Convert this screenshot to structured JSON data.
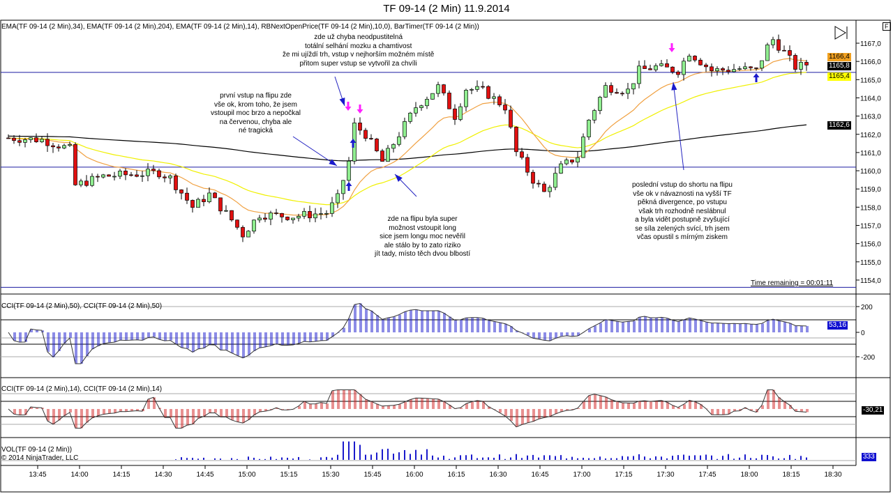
{
  "title": "TF 09-14 (2 Min)  11.9.2014",
  "price_panel_label": "EMA(TF 09-14 (2 Min),34), EMA(TF 09-14 (2 Min),204), EMA(TF 09-14 (2 Min),14), RBNextOpenPrice(TF 09-14 (2 Min),10,0), BarTimer(TF 09-14 (2 Min))",
  "cci50_label": "CCI(TF 09-14 (2 Min),50), CCI(TF 09-14 (2 Min),50)",
  "cci14_label": "CCI(TF 09-14 (2 Min),14), CCI(TF 09-14 (2 Min),14)",
  "vol_label": "VOL(TF 09-14 (2 Min))",
  "copyright": "© 2014 NinjaTrader, LLC",
  "time_remaining": "Time remaining = 00:01:11",
  "f_button": "F",
  "tags": {
    "ema_orange": "1166,4",
    "last": "1165,8",
    "ema_yellow": "1165,4",
    "ema_black": "1162,6",
    "cci50": "53,16",
    "cci14": "-30,21",
    "vol": "333"
  },
  "annotations": {
    "a1": [
      "zde už chyba neodpustitelná",
      "totální selhání mozku a chamtivost",
      "že mi ujíždí trh, vstup v nejhorším možném místě",
      "přitom super vstup se vytvořil za chvíli"
    ],
    "a2": [
      "první vstup na flipu zde",
      "vše ok, krom toho, že jsem",
      "vstoupil moc brzo a nepočkal",
      "na červenou, chyba ale",
      "né tragická"
    ],
    "a3": [
      "zde na flipu byla super",
      "možnost vstoupit long",
      "sice jsem longu moc nevěřil",
      "ale stálo by to zato riziko",
      "jít tady, místo těch dvou blbostí"
    ],
    "a4": [
      "poslední vstup do shortu na flipu",
      "vše ok v návaznosti na vyšší TF",
      "pěkná divergence, po vstupu",
      "však trh rozhodně neslábnul",
      "a byla vidět postupně zvyšující",
      "se síla zelených svící, trh jsem",
      "včas opustil s mírným ziskem"
    ]
  },
  "chart_data": {
    "type": "candlestick",
    "title": "TF 09-14 (2 Min)  11.9.2014",
    "x_ticks": [
      "13:45",
      "14:00",
      "14:15",
      "14:30",
      "14:45",
      "15:00",
      "15:15",
      "15:30",
      "15:45",
      "16:00",
      "16:15",
      "16:30",
      "16:45",
      "17:00",
      "17:15",
      "17:30",
      "17:45",
      "18:00",
      "18:15",
      "18:30"
    ],
    "y_ticks": [
      "1167,0",
      "1166,0",
      "1165,0",
      "1164,0",
      "1163,0",
      "1162,0",
      "1161,0",
      "1160,0",
      "1159,0",
      "1158,0",
      "1157,0",
      "1156,0",
      "1155,0",
      "1154,0"
    ],
    "ylim": [
      1153.5,
      1167.8
    ],
    "horizontal_lines": [
      1165.4,
      1160.2,
      1153.6
    ],
    "cci50_ticks": [
      "200",
      "0",
      "-200"
    ],
    "price_path_minutes_after_1337": [
      [
        0,
        1161.8
      ],
      [
        12,
        1161.7
      ],
      [
        22,
        1161.2
      ],
      [
        24,
        1159.2
      ],
      [
        34,
        1159.7
      ],
      [
        54,
        1159.9
      ],
      [
        58,
        1159.6
      ],
      [
        66,
        1158.0
      ],
      [
        72,
        1158.7
      ],
      [
        80,
        1157.3
      ],
      [
        84,
        1156.5
      ],
      [
        90,
        1157.6
      ],
      [
        102,
        1157.5
      ],
      [
        114,
        1157.7
      ],
      [
        118,
        1158.5
      ],
      [
        122,
        1160.5
      ],
      [
        124,
        1162.5
      ],
      [
        128,
        1162.0
      ],
      [
        134,
        1160.5
      ],
      [
        140,
        1162.0
      ],
      [
        146,
        1163.5
      ],
      [
        154,
        1164.6
      ],
      [
        160,
        1163.0
      ],
      [
        164,
        1164.5
      ],
      [
        170,
        1164.4
      ],
      [
        178,
        1163.5
      ],
      [
        182,
        1161.0
      ],
      [
        188,
        1159.5
      ],
      [
        192,
        1158.8
      ],
      [
        198,
        1160.2
      ],
      [
        204,
        1160.8
      ],
      [
        208,
        1162.8
      ],
      [
        214,
        1164.6
      ],
      [
        222,
        1164.4
      ],
      [
        226,
        1165.5
      ],
      [
        232,
        1165.7
      ],
      [
        240,
        1165.5
      ],
      [
        244,
        1166.5
      ],
      [
        252,
        1165.5
      ],
      [
        262,
        1165.6
      ],
      [
        268,
        1165.5
      ],
      [
        272,
        1166.8
      ],
      [
        274,
        1167.2
      ],
      [
        278,
        1166.5
      ],
      [
        282,
        1165.7
      ],
      [
        286,
        1165.8
      ]
    ],
    "ema_periods": {
      "orange": 14,
      "yellow": 34,
      "black": 204
    }
  }
}
